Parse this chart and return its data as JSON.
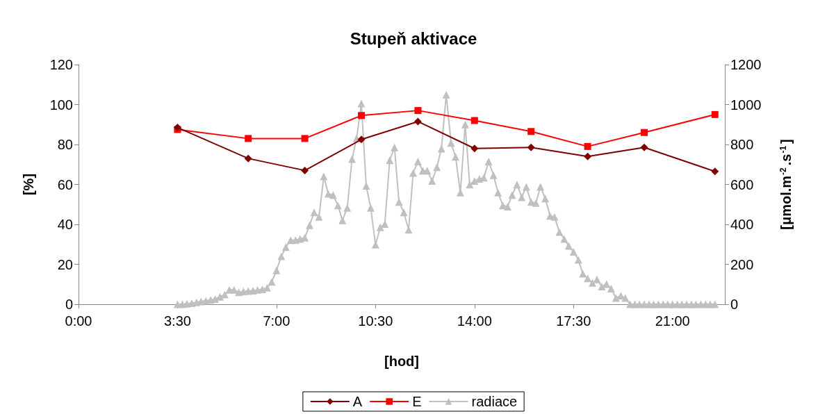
{
  "chart_data": {
    "type": "line",
    "title": "Stupeň aktivace",
    "xlabel": "[hod]",
    "ylabel": "[%]",
    "y2label": "[μmol.m$^{-2}$.s$^{-1}$]",
    "xlim": [
      0,
      22.85
    ],
    "xticks": [
      {
        "value": 0,
        "label": "0:00"
      },
      {
        "value": 3.5,
        "label": "3:30"
      },
      {
        "value": 7,
        "label": "7:00"
      },
      {
        "value": 10.5,
        "label": "10:30"
      },
      {
        "value": 14,
        "label": "14:00"
      },
      {
        "value": 17.5,
        "label": "17:30"
      },
      {
        "value": 21,
        "label": "21:00"
      }
    ],
    "ylim": [
      0,
      120
    ],
    "yticks": [
      0,
      20,
      40,
      60,
      80,
      100,
      120
    ],
    "y2lim": [
      0,
      1200
    ],
    "y2ticks": [
      0,
      200,
      400,
      600,
      800,
      1000,
      1200
    ],
    "grid": false,
    "legend": "bottom",
    "line_style": "solid",
    "series": [
      {
        "name": "A",
        "color": "#800000",
        "marker": "diamond",
        "x": [
          3.5,
          6,
          8,
          10,
          12,
          14,
          16,
          18,
          20,
          22.5
        ],
        "values": [
          88.5,
          73,
          67,
          82.5,
          91.5,
          78,
          78.5,
          74,
          78.5,
          66.5
        ]
      },
      {
        "name": "E",
        "color": "#ff0000",
        "marker": "square",
        "x": [
          3.5,
          6,
          8,
          10,
          12,
          14,
          16,
          18,
          20,
          22.5
        ],
        "values": [
          87.5,
          83,
          83,
          94.5,
          97,
          92,
          86.5,
          79,
          86,
          95
        ]
      },
      {
        "name": "radiace",
        "color": "#c0c0c0",
        "marker": "triangle",
        "axis": "y2",
        "x": [
          3.5,
          3.67,
          3.83,
          4,
          4.17,
          4.33,
          4.5,
          4.67,
          4.83,
          5,
          5.17,
          5.33,
          5.5,
          5.67,
          5.83,
          6,
          6.17,
          6.33,
          6.5,
          6.67,
          6.83,
          7,
          7.17,
          7.33,
          7.5,
          7.67,
          7.83,
          8,
          8.17,
          8.33,
          8.5,
          8.67,
          8.83,
          9,
          9.17,
          9.33,
          9.5,
          9.67,
          9.83,
          10,
          10.17,
          10.33,
          10.5,
          10.67,
          10.83,
          11,
          11.17,
          11.33,
          11.5,
          11.67,
          11.83,
          12,
          12.17,
          12.33,
          12.5,
          12.67,
          12.83,
          13,
          13.17,
          13.33,
          13.5,
          13.67,
          13.83,
          14,
          14.17,
          14.33,
          14.5,
          14.67,
          14.83,
          15,
          15.17,
          15.33,
          15.5,
          15.67,
          15.83,
          16,
          16.17,
          16.33,
          16.5,
          16.67,
          16.83,
          17,
          17.17,
          17.33,
          17.5,
          17.67,
          17.83,
          18,
          18.17,
          18.33,
          18.5,
          18.67,
          18.83,
          19,
          19.17,
          19.33,
          19.5,
          19.67,
          19.83,
          20,
          20.17,
          20.33,
          20.5,
          20.67,
          20.83,
          21,
          21.17,
          21.33,
          21.5,
          21.67,
          21.83,
          22,
          22.17,
          22.33,
          22.5
        ],
        "values": [
          0,
          0,
          3,
          5,
          10,
          14,
          17,
          22,
          26,
          37,
          49,
          72,
          72,
          60,
          64,
          66,
          68,
          72,
          75,
          83,
          112,
          170,
          240,
          286,
          321,
          321,
          327,
          333,
          396,
          460,
          437,
          640,
          553,
          547,
          495,
          420,
          483,
          727,
          831,
          1005,
          593,
          483,
          298,
          385,
          402,
          721,
          785,
          512,
          460,
          373,
          657,
          715,
          669,
          669,
          617,
          686,
          779,
          1050,
          808,
          738,
          559,
          900,
          599,
          617,
          628,
          634,
          715,
          646,
          559,
          495,
          489,
          547,
          599,
          536,
          588,
          512,
          507,
          588,
          530,
          443,
          437,
          362,
          327,
          292,
          263,
          223,
          153,
          130,
          107,
          124,
          89,
          101,
          78,
          31,
          43,
          31,
          0,
          0,
          0,
          0,
          0,
          0,
          0,
          0,
          0,
          0,
          0,
          0,
          0,
          0,
          0,
          0,
          0,
          0,
          0
        ]
      }
    ]
  }
}
